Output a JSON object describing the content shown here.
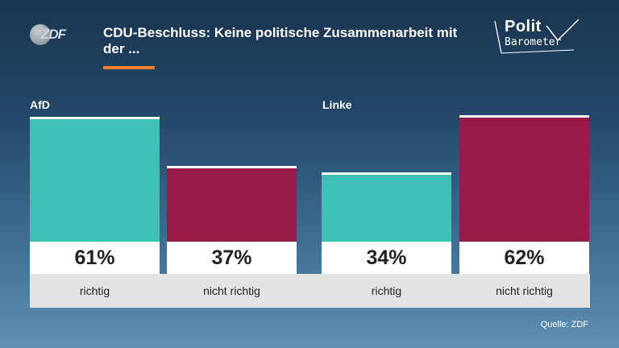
{
  "header": {
    "title": "CDU-Beschluss: Keine politische Zusammenarbeit mit der ...",
    "logo_left": "ZDF",
    "logo_right_line1": "Polit",
    "logo_right_line2": "Barometer"
  },
  "colors": {
    "teal": "#3ec1b5",
    "maroon": "#9a1a4a",
    "accent": "#f07e26"
  },
  "chart_data": {
    "type": "bar",
    "groups": [
      {
        "name": "AfD",
        "bars": [
          {
            "category": "richtig",
            "value": 61,
            "label": "61%",
            "color": "#3ec1b5"
          },
          {
            "category": "nicht richtig",
            "value": 37,
            "label": "37%",
            "color": "#9a1a4a"
          }
        ]
      },
      {
        "name": "Linke",
        "bars": [
          {
            "category": "richtig",
            "value": 34,
            "label": "34%",
            "color": "#3ec1b5"
          },
          {
            "category": "nicht richtig",
            "value": 62,
            "label": "62%",
            "color": "#9a1a4a"
          }
        ]
      }
    ],
    "unit": "%"
  },
  "source": "Quelle: ZDF"
}
